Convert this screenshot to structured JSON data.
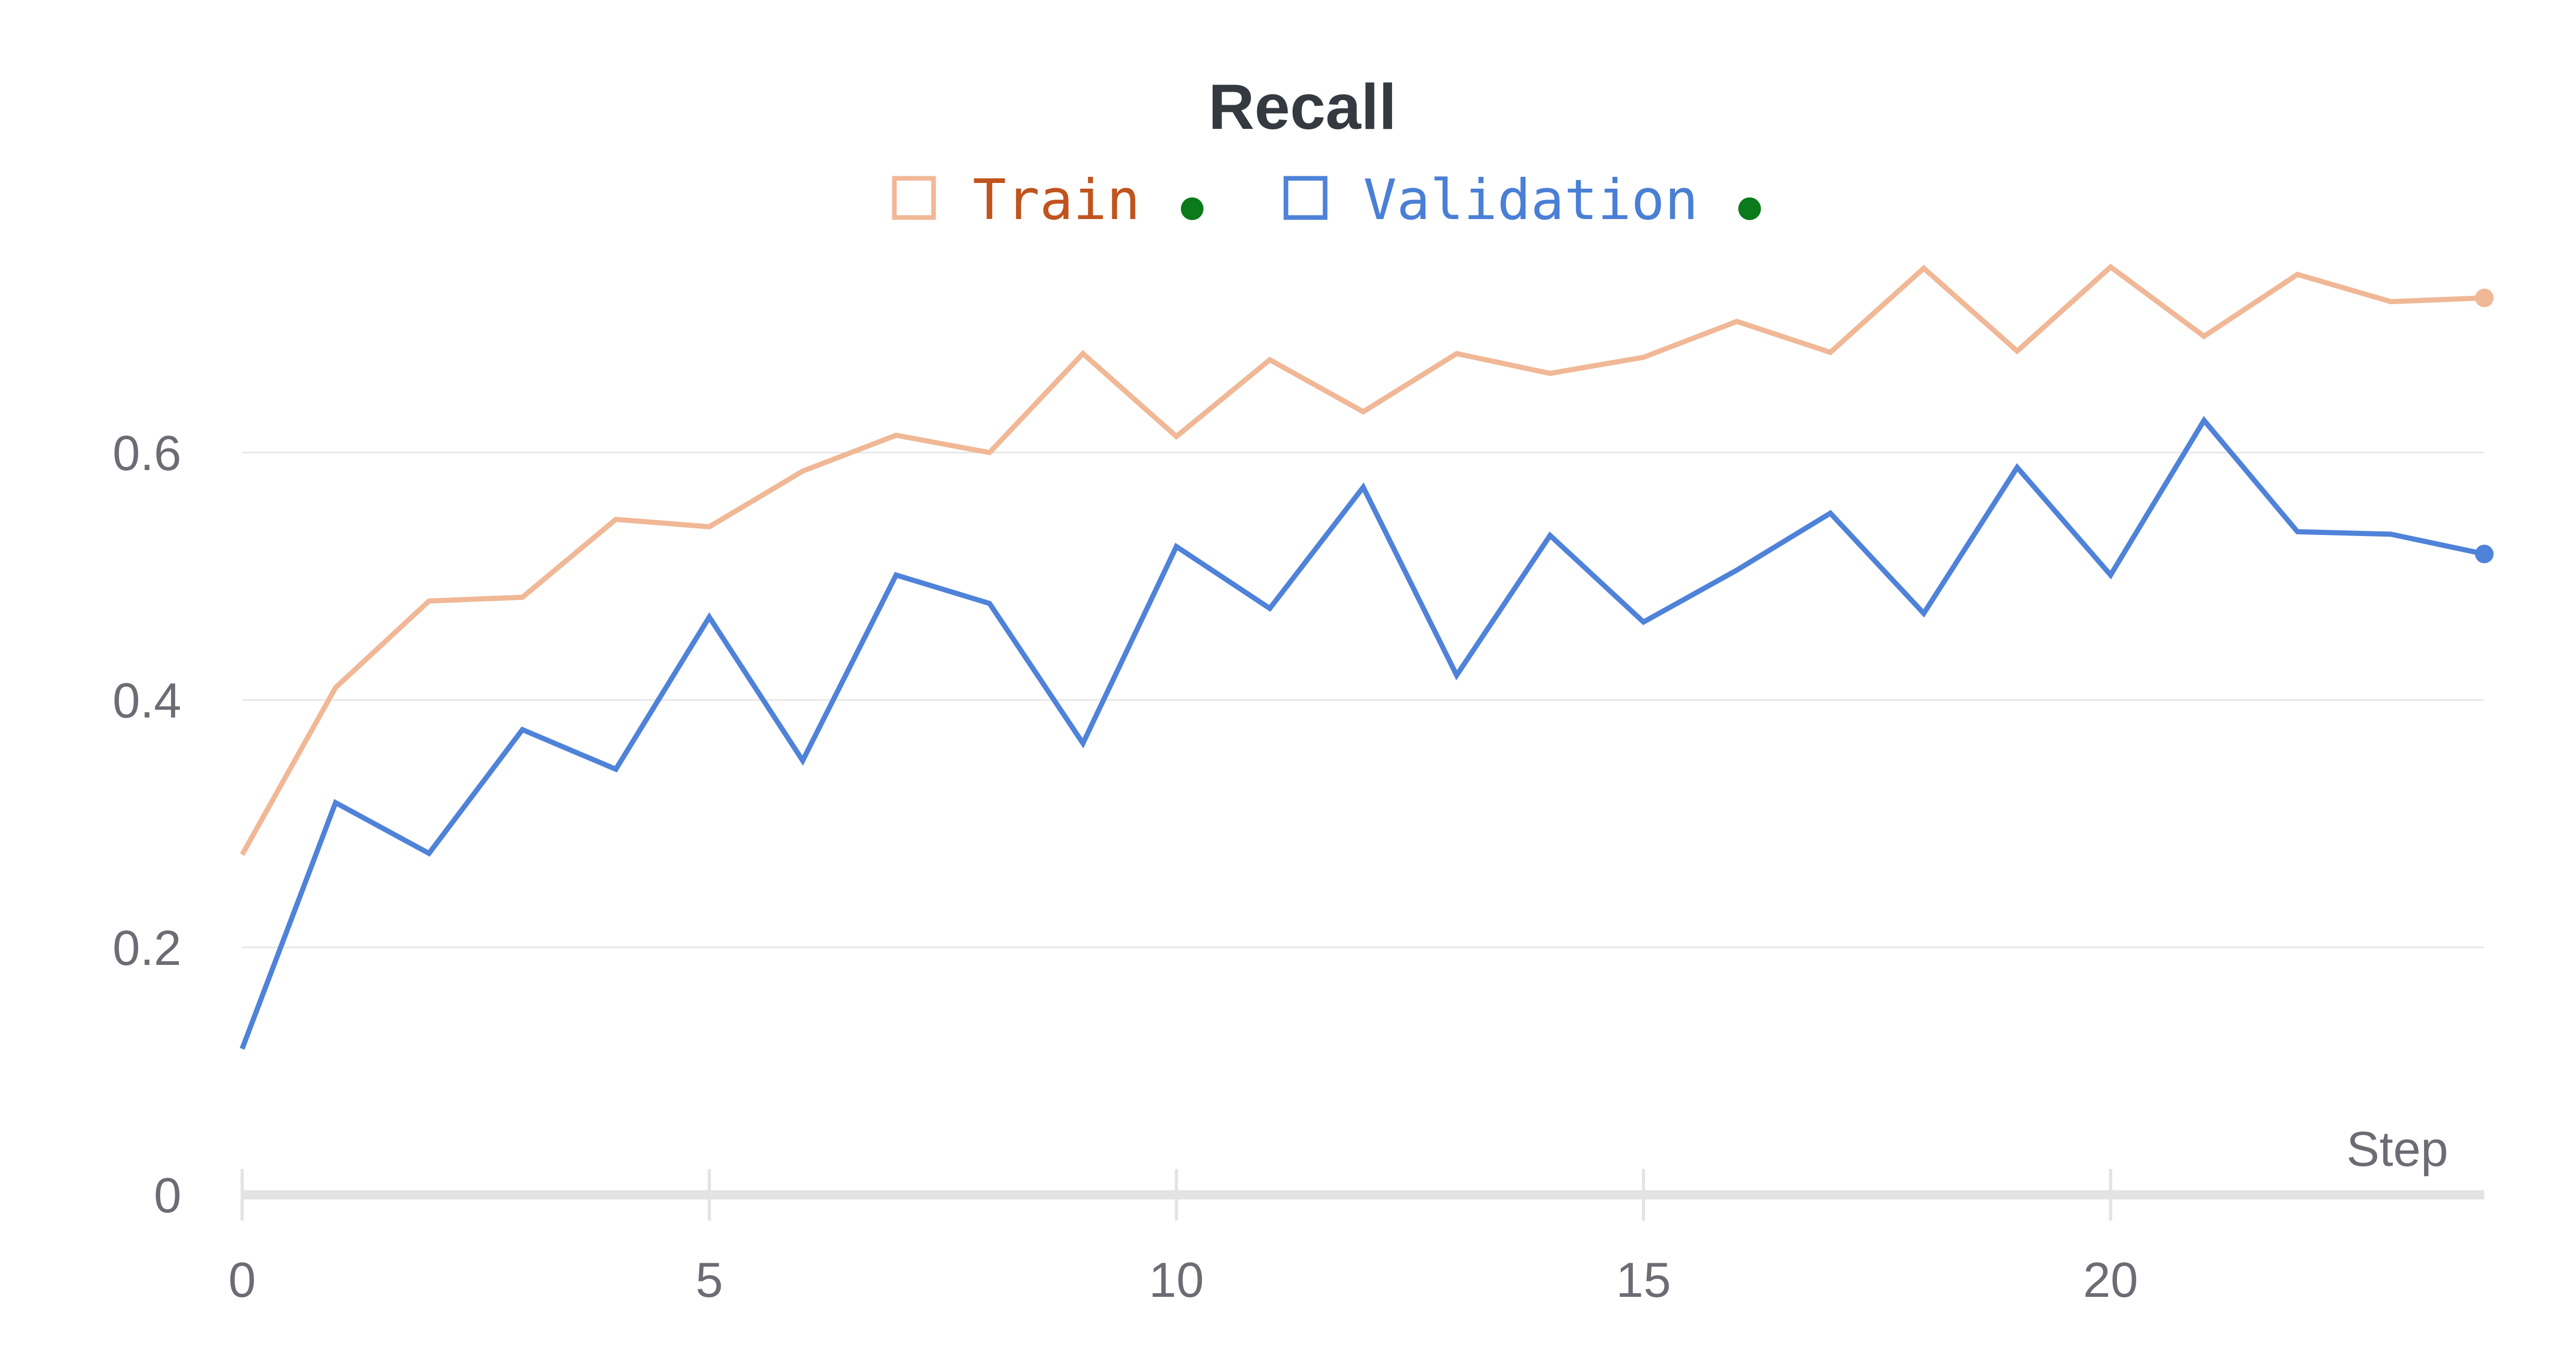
{
  "chart_data": {
    "type": "line",
    "title": "Recall",
    "xlabel": "Step",
    "ylabel": "",
    "xlim": [
      0,
      24
    ],
    "ylim": [
      0,
      0.7
    ],
    "x_ticks": [
      0,
      5,
      10,
      15,
      20
    ],
    "y_ticks": [
      0,
      0.2,
      0.4,
      0.6
    ],
    "y_tick_labels": [
      "0",
      "0.2",
      "0.4",
      "0.6"
    ],
    "x_tick_labels": [
      "0",
      "5",
      "10",
      "15",
      "20"
    ],
    "grid": true,
    "legend_position": "top-center",
    "x": [
      0,
      1,
      2,
      3,
      4,
      5,
      6,
      7,
      8,
      9,
      10,
      11,
      12,
      13,
      14,
      15,
      16,
      17,
      18,
      19,
      20,
      21,
      22,
      23,
      24
    ],
    "series": [
      {
        "name": "Train",
        "line_color": "#f0b896",
        "text_color": "#c0541e",
        "status_color": "#0a7a1a",
        "values": [
          0.275,
          0.41,
          0.48,
          0.483,
          0.546,
          0.54,
          0.585,
          0.614,
          0.6,
          0.68,
          0.613,
          0.675,
          0.633,
          0.68,
          0.664,
          0.677,
          0.706,
          0.681,
          0.749,
          0.682,
          0.75,
          0.694,
          0.744,
          0.722,
          0.725
        ]
      },
      {
        "name": "Validation",
        "line_color": "#4f82d9",
        "text_color": "#4a7fd6",
        "status_color": "#0a7a1a",
        "values": [
          0.118,
          0.317,
          0.276,
          0.376,
          0.344,
          0.467,
          0.351,
          0.501,
          0.478,
          0.365,
          0.524,
          0.474,
          0.572,
          0.42,
          0.533,
          0.463,
          0.505,
          0.551,
          0.47,
          0.588,
          0.501,
          0.626,
          0.536,
          0.534,
          0.518
        ]
      }
    ]
  }
}
